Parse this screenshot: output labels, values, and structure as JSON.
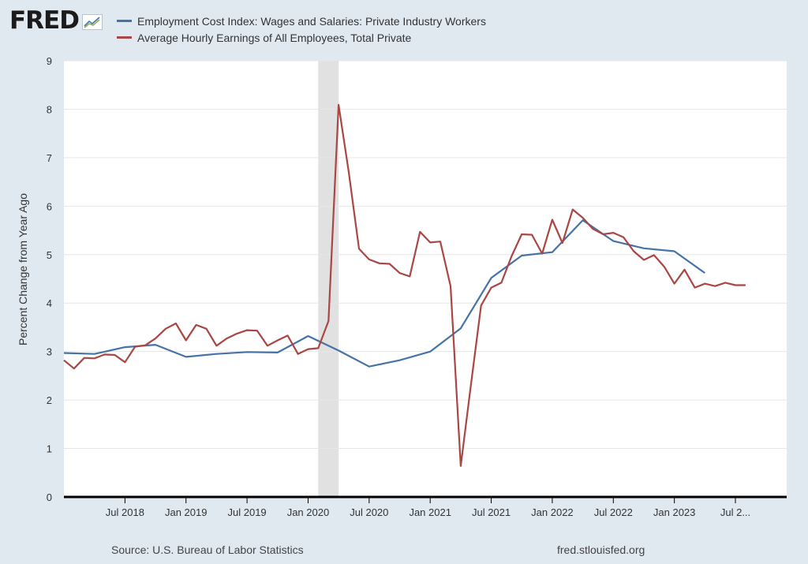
{
  "brand": {
    "logo_text": "FRED",
    "logo_mark": "chart-line-icon"
  },
  "colors": {
    "background": "#e1e9f0",
    "plot_background": "#ffffff",
    "recession": "#e1e1e1",
    "series_eci": "#4572a7",
    "series_ahe": "#aa4643",
    "gridline": "#e6e6e6",
    "axis": "#000000"
  },
  "footer": {
    "source": "Source: U.S. Bureau of Labor Statistics",
    "site": "fred.stlouisfed.org"
  },
  "chart_data": {
    "type": "line",
    "title": "",
    "xlabel": "",
    "ylabel": "Percent Change from Year Ago",
    "ylim": [
      0,
      9
    ],
    "yticks": [
      0,
      1,
      2,
      3,
      4,
      5,
      6,
      7,
      8,
      9
    ],
    "xlim": [
      2018.0,
      2023.92
    ],
    "xticks": [
      {
        "value": 2018.5,
        "label": "Jul 2018"
      },
      {
        "value": 2019.0,
        "label": "Jan 2019"
      },
      {
        "value": 2019.5,
        "label": "Jul 2019"
      },
      {
        "value": 2020.0,
        "label": "Jan 2020"
      },
      {
        "value": 2020.5,
        "label": "Jul 2020"
      },
      {
        "value": 2021.0,
        "label": "Jan 2021"
      },
      {
        "value": 2021.5,
        "label": "Jul 2021"
      },
      {
        "value": 2022.0,
        "label": "Jan 2022"
      },
      {
        "value": 2022.5,
        "label": "Jul 2022"
      },
      {
        "value": 2023.0,
        "label": "Jan 2023"
      },
      {
        "value": 2023.5,
        "label": "Jul 2..."
      }
    ],
    "grid": true,
    "recession": [
      2020.083,
      2020.25
    ],
    "series": [
      {
        "name": "Employment Cost Index: Wages and Salaries: Private Industry Workers",
        "color": "#4572a7",
        "x": [
          2018.0,
          2018.25,
          2018.5,
          2018.75,
          2019.0,
          2019.25,
          2019.5,
          2019.75,
          2020.0,
          2020.25,
          2020.5,
          2020.75,
          2021.0,
          2021.25,
          2021.5,
          2021.75,
          2022.0,
          2022.25,
          2022.5,
          2022.75,
          2023.0,
          2023.25
        ],
        "values": [
          2.97,
          2.95,
          3.09,
          3.14,
          2.89,
          2.95,
          2.99,
          2.98,
          3.32,
          3.02,
          2.69,
          2.82,
          3.0,
          3.48,
          4.52,
          4.98,
          5.05,
          5.71,
          5.28,
          5.13,
          5.07,
          4.62
        ]
      },
      {
        "name": "Average Hourly Earnings of All Employees, Total Private",
        "color": "#aa4643",
        "x": [
          2018.0,
          2018.083,
          2018.167,
          2018.25,
          2018.333,
          2018.417,
          2018.5,
          2018.583,
          2018.667,
          2018.75,
          2018.833,
          2018.917,
          2019.0,
          2019.083,
          2019.167,
          2019.25,
          2019.333,
          2019.417,
          2019.5,
          2019.583,
          2019.667,
          2019.75,
          2019.833,
          2019.917,
          2020.0,
          2020.083,
          2020.167,
          2020.25,
          2020.333,
          2020.417,
          2020.5,
          2020.583,
          2020.667,
          2020.75,
          2020.833,
          2020.917,
          2021.0,
          2021.083,
          2021.167,
          2021.25,
          2021.333,
          2021.417,
          2021.5,
          2021.583,
          2021.667,
          2021.75,
          2021.833,
          2021.917,
          2022.0,
          2022.083,
          2022.167,
          2022.25,
          2022.333,
          2022.417,
          2022.5,
          2022.583,
          2022.667,
          2022.75,
          2022.833,
          2022.917,
          2023.0,
          2023.083,
          2023.167,
          2023.25,
          2023.333,
          2023.417,
          2023.5,
          2023.583
        ],
        "values": [
          2.82,
          2.65,
          2.87,
          2.86,
          2.94,
          2.93,
          2.78,
          3.1,
          3.13,
          3.27,
          3.47,
          3.58,
          3.23,
          3.55,
          3.47,
          3.12,
          3.27,
          3.37,
          3.44,
          3.43,
          3.12,
          3.23,
          3.33,
          2.95,
          3.05,
          3.07,
          3.63,
          8.09,
          6.7,
          5.12,
          4.9,
          4.82,
          4.81,
          4.62,
          4.55,
          5.47,
          5.25,
          5.27,
          4.35,
          0.64,
          2.3,
          3.95,
          4.32,
          4.42,
          4.97,
          5.42,
          5.41,
          5.02,
          5.72,
          5.24,
          5.93,
          5.76,
          5.53,
          5.42,
          5.45,
          5.36,
          5.07,
          4.89,
          4.99,
          4.75,
          4.4,
          4.69,
          4.32,
          4.4,
          4.35,
          4.42,
          4.37,
          4.37
        ]
      }
    ]
  }
}
